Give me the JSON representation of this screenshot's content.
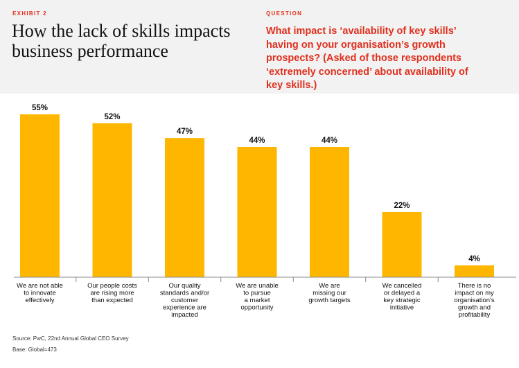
{
  "header": {
    "exhibit": "EXHIBIT 2",
    "title": "How the lack of skills impacts business performance",
    "question_label": "QUESTION",
    "question": "What impact is ‘availability of key skills’ having on your organisation’s growth prospects? (Asked of those respondents ‘extremely concerned’ about availability of key skills.)"
  },
  "colors": {
    "bar": "#ffb600",
    "accent": "#e0301e",
    "header_bg": "#f2f2f2",
    "axis": "#888888"
  },
  "chart_data": {
    "type": "bar",
    "title": "How the lack of skills impacts business performance",
    "xlabel": "",
    "ylabel": "",
    "ylim": [
      0,
      55
    ],
    "grid": false,
    "legend": "none",
    "categories": [
      [
        "We are not able",
        "to innovate",
        "effectively"
      ],
      [
        "Our people costs",
        "are rising more",
        "than expected"
      ],
      [
        "Our quality",
        "standards and/or",
        "customer",
        "experience are",
        "impacted"
      ],
      [
        "We are unable",
        "to pursue",
        "a market",
        "opportunity"
      ],
      [
        "We are",
        "missing our",
        "growth targets"
      ],
      [
        "We cancelled",
        "or delayed a",
        "key strategic",
        "initiative"
      ],
      [
        "There is no",
        "impact on my",
        "organisation's",
        "growth and",
        "profitability"
      ]
    ],
    "values": [
      55,
      52,
      47,
      44,
      44,
      22,
      4
    ],
    "value_labels": [
      "55%",
      "52%",
      "47%",
      "44%",
      "44%",
      "22%",
      "4%"
    ],
    "unit": "%"
  },
  "footer": {
    "source": "Source: PwC, 22nd Annual Global CEO Survey",
    "base": "Base: Global=473"
  }
}
